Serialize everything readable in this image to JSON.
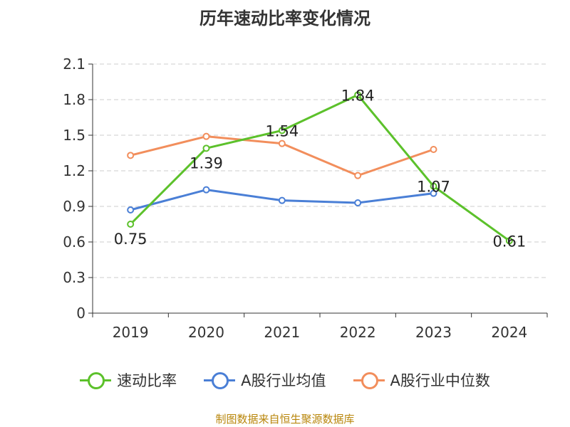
{
  "title": "历年速动比率变化情况",
  "source": "制图数据来自恒生聚源数据库",
  "chart_data": {
    "type": "line",
    "categories": [
      "2019",
      "2020",
      "2021",
      "2022",
      "2023",
      "2024"
    ],
    "ylim": [
      0,
      2.1
    ],
    "yticks": [
      "0",
      "0.3",
      "0.6",
      "0.9",
      "1.2",
      "1.5",
      "1.8",
      "2.1"
    ],
    "grid": true,
    "legend_position": "bottom",
    "series": [
      {
        "name": "速动比率",
        "color": "#5cc12b",
        "values": [
          0.75,
          1.39,
          1.54,
          1.84,
          1.07,
          0.61
        ],
        "labels": [
          "0.75",
          "1.39",
          "1.54",
          "1.84",
          "1.07",
          "0.61"
        ]
      },
      {
        "name": "A股行业均值",
        "color": "#4a7fd6",
        "values": [
          0.87,
          1.04,
          0.95,
          0.93,
          1.01,
          null
        ]
      },
      {
        "name": "A股行业中位数",
        "color": "#f28e5c",
        "values": [
          1.33,
          1.49,
          1.43,
          1.16,
          1.38,
          null
        ]
      }
    ]
  }
}
